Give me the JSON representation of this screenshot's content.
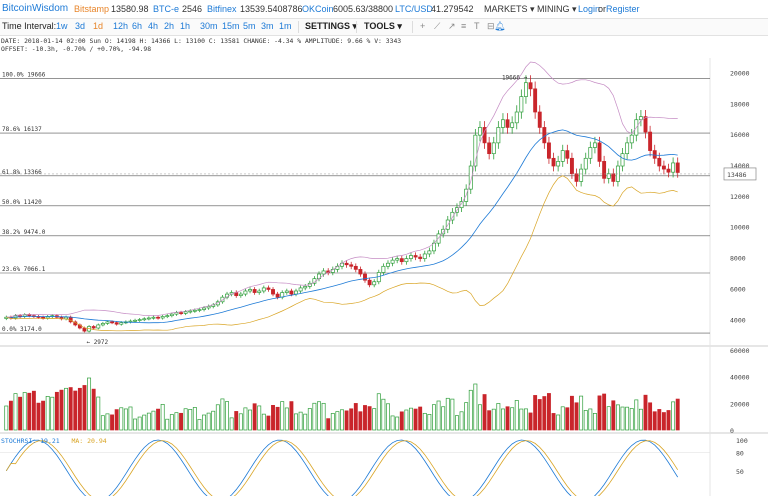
{
  "header": {
    "logo": "BitcoinWisdom",
    "exchanges": [
      {
        "name": "Bitstamp",
        "price": "13580.98",
        "active": true
      },
      {
        "name": "BTC-e",
        "price": "2546",
        "active": false
      },
      {
        "name": "Bitfinex",
        "price": "13539.5408786",
        "active": false
      },
      {
        "name": "OKCoin",
        "price": "6005.63/38800",
        "active": false
      },
      {
        "name": "LTC/USD",
        "price": "41.279542",
        "active": false
      }
    ],
    "markets": "MARKETS",
    "mining": "MINING",
    "login": "Login",
    "or": "or",
    "register": "Register"
  },
  "toolbar": {
    "time_interval_label": "Time Interval:",
    "intervals": [
      "1w",
      "3d",
      "1d",
      "12h",
      "6h",
      "4h",
      "2h",
      "1h",
      "30m",
      "15m",
      "5m",
      "3m",
      "1m"
    ],
    "selected_interval": "1d",
    "settings": "SETTINGS",
    "tools": "TOOLS",
    "icons": [
      "plus-icon",
      "line-tool-icon",
      "ray-tool-icon",
      "fibonacci-tool-icon",
      "text-tool-icon",
      "trash-icon",
      "bell-icon"
    ]
  },
  "info": {
    "line1": "DATE: 2018-01-14 02:00 Sun   O: 14198   H: 14366   L: 13100   C: 13581   CHANGE: -4.34 %   AMPLITUDE: 9.66 %   V: 3343",
    "line2": "OFFSET: -10.3h, -0.70% / +0.70%, -94.98"
  },
  "chart_data": {
    "type": "candlestick",
    "price_axis": {
      "ticks": [
        4000,
        6000,
        8000,
        10000,
        12000,
        14000,
        16000,
        18000,
        20000
      ],
      "range": [
        2400,
        21000
      ]
    },
    "current_price_label": "13486",
    "high_marker": "19666",
    "low_marker": "2972",
    "fibonacci": [
      {
        "label": "100.0% 19666",
        "price": 19666
      },
      {
        "label": "78.6% 16137",
        "price": 16137
      },
      {
        "label": "61.8% 13366",
        "price": 13366
      },
      {
        "label": "50.0% 11420",
        "price": 11420
      },
      {
        "label": "38.2% 9474.0",
        "price": 9474
      },
      {
        "label": "23.6% 7066.1",
        "price": 7066.1
      },
      {
        "label": "0.0% 3174.0",
        "price": 3174
      }
    ],
    "closes": [
      4200,
      4150,
      4300,
      4250,
      4350,
      4300,
      4250,
      4200,
      4150,
      4250,
      4300,
      4200,
      4100,
      4200,
      3900,
      3700,
      3500,
      3300,
      3600,
      3500,
      3700,
      3800,
      3900,
      3850,
      3750,
      3850,
      3900,
      3950,
      4000,
      4050,
      4100,
      4150,
      4200,
      4150,
      4250,
      4300,
      4400,
      4500,
      4450,
      4550,
      4600,
      4650,
      4700,
      4800,
      4900,
      5000,
      5200,
      5500,
      5700,
      5800,
      5600,
      5700,
      5900,
      6000,
      5800,
      5900,
      6100,
      6000,
      5700,
      5500,
      5800,
      5900,
      5700,
      5900,
      6100,
      6200,
      6400,
      6700,
      7000,
      7200,
      7100,
      7300,
      7500,
      7700,
      7600,
      7500,
      7300,
      7000,
      6600,
      6300,
      6500,
      7100,
      7500,
      7700,
      7900,
      8000,
      7800,
      8000,
      8200,
      8100,
      8000,
      8300,
      8500,
      9000,
      9600,
      9900,
      10500,
      11000,
      11300,
      11700,
      12500,
      14000,
      16000,
      16500,
      15500,
      14800,
      15500,
      16500,
      17000,
      16500,
      16800,
      17500,
      18500,
      19400,
      19000,
      17500,
      16500,
      15500,
      14500,
      14000,
      14300,
      15000,
      14500,
      13500,
      13000,
      13800,
      14500,
      15200,
      15500,
      14300,
      13200,
      13500,
      13000,
      14000,
      14800,
      15500,
      16000,
      17000,
      17200,
      16200,
      15000,
      14500,
      14000,
      13800,
      13600,
      14200,
      13581
    ]
  },
  "indicators": {
    "stoch_label": "STOCHRSI: 19.21",
    "ma_label": "MA: 20.94",
    "volume_ticks": [
      "60000",
      "40000",
      "20000",
      "0"
    ],
    "stoch_ticks": [
      "100",
      "80",
      "50"
    ]
  },
  "colors": {
    "up": "#2e9e3a",
    "down": "#c9252b",
    "ma": "#1d7ad6",
    "boll_upper": "#c58cc4",
    "boll_lower": "#d9a526",
    "accent": "#1d7ad6",
    "active": "#e8852a"
  }
}
